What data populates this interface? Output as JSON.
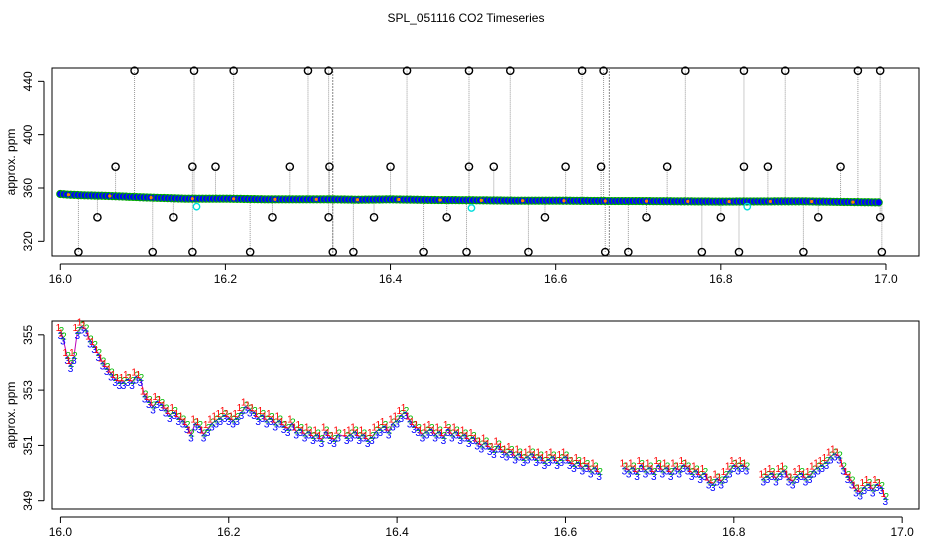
{
  "page": {
    "title": "SPL_051116  CO2 Timeseries"
  },
  "chart_data": [
    {
      "type": "scatter",
      "title": "SPL_051116  CO2 Timeseries",
      "xlabel": "",
      "ylabel": "approx. ppm",
      "xlim": [
        15.99,
        17.04
      ],
      "ylim": [
        309,
        450
      ],
      "x_ticks": [
        16.0,
        16.2,
        16.4,
        16.6,
        16.8,
        17.0
      ],
      "x_tick_labels": [
        "16.0",
        "16.2",
        "16.4",
        "16.6",
        "16.8",
        "17.0"
      ],
      "y_ticks": [
        320,
        360,
        400,
        440
      ],
      "y_tick_labels": [
        "320",
        "360",
        "400",
        "440"
      ],
      "grid": false,
      "segment_breaks": [
        16.33,
        16.665
      ],
      "colors": {
        "main_series": "#0000ff",
        "main_series_edge": "#00aa00",
        "marker_edge": "#ff8000",
        "outlier_marker": "#000000",
        "spike_line": "#999999",
        "highlight": "#00dddd"
      },
      "baseline_points": [
        [
          16.0,
          355.5
        ],
        [
          16.01,
          355.0
        ],
        [
          16.03,
          354.5
        ],
        [
          16.06,
          354.0
        ],
        [
          16.1,
          353.0
        ],
        [
          16.15,
          352.0
        ],
        [
          16.2,
          352.0
        ],
        [
          16.25,
          351.5
        ],
        [
          16.3,
          351.5
        ],
        [
          16.33,
          351.5
        ],
        [
          16.36,
          351.2
        ],
        [
          16.4,
          351.5
        ],
        [
          16.45,
          351.0
        ],
        [
          16.5,
          350.8
        ],
        [
          16.55,
          350.5
        ],
        [
          16.6,
          350.5
        ],
        [
          16.665,
          350.2
        ],
        [
          16.7,
          350.2
        ],
        [
          16.75,
          350.0
        ],
        [
          16.8,
          349.8
        ],
        [
          16.84,
          349.9
        ],
        [
          16.9,
          350.0
        ],
        [
          16.95,
          349.5
        ],
        [
          16.99,
          349.2
        ]
      ],
      "spikes_high": [
        16.09,
        16.162,
        16.21,
        16.3,
        16.325,
        16.42,
        16.495,
        16.545,
        16.632,
        16.658,
        16.757,
        16.828,
        16.878,
        16.966,
        16.993
      ],
      "spikes_mid": [
        16.067,
        16.16,
        16.188,
        16.278,
        16.326,
        16.4,
        16.495,
        16.525,
        16.612,
        16.655,
        16.735,
        16.828,
        16.857,
        16.945
      ],
      "spikes_low": [
        16.022,
        16.112,
        16.16,
        16.23,
        16.33,
        16.355,
        16.44,
        16.492,
        16.567,
        16.66,
        16.688,
        16.777,
        16.822,
        16.9,
        16.995
      ],
      "spikes_lowmid": [
        16.045,
        16.137,
        16.257,
        16.325,
        16.38,
        16.468,
        16.587,
        16.71,
        16.8,
        16.918,
        16.993
      ],
      "high_value": 448,
      "mid_value": 376,
      "low_value": 312,
      "lowmid_value": 338,
      "highlight_points": [
        [
          16.165,
          346
        ],
        [
          16.498,
          345
        ],
        [
          16.832,
          346
        ]
      ]
    },
    {
      "type": "line",
      "xlabel": "",
      "ylabel": "approx. ppm",
      "xlim": [
        15.99,
        17.02
      ],
      "ylim": [
        348.7,
        355.5
      ],
      "x_ticks": [
        16.0,
        16.2,
        16.4,
        16.6,
        16.8,
        17.0
      ],
      "x_tick_labels": [
        "16.0",
        "16.2",
        "16.4",
        "16.6",
        "16.8",
        "17.0"
      ],
      "y_ticks": [
        349,
        351,
        353,
        355
      ],
      "y_tick_labels": [
        "349",
        "351",
        "353",
        "355"
      ],
      "grid": false,
      "series_markers": [
        "1",
        "2",
        "3"
      ],
      "colors": {
        "series_1": "#ff0000",
        "series_2": "#00bb00",
        "series_3": "#0000ff",
        "connector": "#bb00bb"
      },
      "points": [
        [
          16.0,
          355.1
        ],
        [
          16.003,
          354.9
        ],
        [
          16.008,
          354.2
        ],
        [
          16.012,
          353.9
        ],
        [
          16.016,
          354.2
        ],
        [
          16.02,
          355.1
        ],
        [
          16.025,
          355.3
        ],
        [
          16.03,
          355.2
        ],
        [
          16.035,
          354.8
        ],
        [
          16.04,
          354.6
        ],
        [
          16.045,
          354.3
        ],
        [
          16.05,
          354.0
        ],
        [
          16.055,
          353.8
        ],
        [
          16.06,
          353.6
        ],
        [
          16.065,
          353.4
        ],
        [
          16.07,
          353.3
        ],
        [
          16.075,
          353.3
        ],
        [
          16.08,
          353.4
        ],
        [
          16.085,
          353.3
        ],
        [
          16.09,
          353.5
        ],
        [
          16.095,
          353.4
        ],
        [
          16.1,
          352.8
        ],
        [
          16.105,
          352.6
        ],
        [
          16.11,
          352.4
        ],
        [
          16.115,
          352.6
        ],
        [
          16.12,
          352.5
        ],
        [
          16.125,
          352.3
        ],
        [
          16.13,
          352.1
        ],
        [
          16.135,
          352.2
        ],
        [
          16.14,
          352.0
        ],
        [
          16.145,
          351.9
        ],
        [
          16.15,
          351.7
        ],
        [
          16.155,
          351.4
        ],
        [
          16.16,
          351.8
        ],
        [
          16.165,
          351.7
        ],
        [
          16.17,
          351.4
        ],
        [
          16.175,
          351.6
        ],
        [
          16.18,
          351.8
        ],
        [
          16.185,
          351.9
        ],
        [
          16.19,
          352.0
        ],
        [
          16.195,
          352.1
        ],
        [
          16.2,
          352.0
        ],
        [
          16.205,
          351.9
        ],
        [
          16.21,
          352.0
        ],
        [
          16.215,
          352.2
        ],
        [
          16.22,
          352.4
        ],
        [
          16.225,
          352.3
        ],
        [
          16.23,
          352.2
        ],
        [
          16.235,
          352.0
        ],
        [
          16.24,
          352.1
        ],
        [
          16.245,
          351.9
        ],
        [
          16.25,
          352.0
        ],
        [
          16.255,
          351.8
        ],
        [
          16.26,
          351.9
        ],
        [
          16.265,
          351.7
        ],
        [
          16.27,
          351.6
        ],
        [
          16.275,
          351.8
        ],
        [
          16.28,
          351.5
        ],
        [
          16.285,
          351.6
        ],
        [
          16.29,
          351.4
        ],
        [
          16.295,
          351.5
        ],
        [
          16.3,
          351.3
        ],
        [
          16.305,
          351.4
        ],
        [
          16.31,
          351.2
        ],
        [
          16.315,
          351.5
        ],
        [
          16.32,
          351.3
        ],
        [
          16.325,
          351.2
        ],
        [
          16.33,
          351.4
        ],
        [
          16.34,
          351.3
        ],
        [
          16.345,
          351.4
        ],
        [
          16.35,
          351.5
        ],
        [
          16.355,
          351.3
        ],
        [
          16.36,
          351.4
        ],
        [
          16.365,
          351.2
        ],
        [
          16.37,
          351.3
        ],
        [
          16.375,
          351.5
        ],
        [
          16.38,
          351.6
        ],
        [
          16.385,
          351.7
        ],
        [
          16.39,
          351.5
        ],
        [
          16.395,
          351.8
        ],
        [
          16.4,
          351.9
        ],
        [
          16.405,
          352.1
        ],
        [
          16.41,
          352.2
        ],
        [
          16.415,
          351.9
        ],
        [
          16.42,
          351.7
        ],
        [
          16.425,
          351.6
        ],
        [
          16.43,
          351.4
        ],
        [
          16.435,
          351.5
        ],
        [
          16.44,
          351.6
        ],
        [
          16.445,
          351.4
        ],
        [
          16.45,
          351.5
        ],
        [
          16.455,
          351.3
        ],
        [
          16.46,
          351.6
        ],
        [
          16.465,
          351.4
        ],
        [
          16.47,
          351.5
        ],
        [
          16.475,
          351.3
        ],
        [
          16.48,
          351.4
        ],
        [
          16.485,
          351.2
        ],
        [
          16.49,
          351.3
        ],
        [
          16.495,
          351.1
        ],
        [
          16.5,
          351.0
        ],
        [
          16.505,
          351.1
        ],
        [
          16.51,
          350.9
        ],
        [
          16.515,
          350.8
        ],
        [
          16.52,
          351.0
        ],
        [
          16.525,
          350.8
        ],
        [
          16.53,
          350.7
        ],
        [
          16.535,
          350.8
        ],
        [
          16.54,
          350.6
        ],
        [
          16.545,
          350.7
        ],
        [
          16.55,
          350.5
        ],
        [
          16.555,
          350.6
        ],
        [
          16.56,
          350.7
        ],
        [
          16.565,
          350.5
        ],
        [
          16.57,
          350.6
        ],
        [
          16.575,
          350.4
        ],
        [
          16.58,
          350.5
        ],
        [
          16.585,
          350.6
        ],
        [
          16.59,
          350.4
        ],
        [
          16.595,
          350.5
        ],
        [
          16.6,
          350.6
        ],
        [
          16.605,
          350.4
        ],
        [
          16.61,
          350.3
        ],
        [
          16.615,
          350.4
        ],
        [
          16.62,
          350.2
        ],
        [
          16.625,
          350.3
        ],
        [
          16.63,
          350.1
        ],
        [
          16.635,
          350.2
        ],
        [
          16.64,
          350.0
        ],
        [
          16.67,
          350.2
        ],
        [
          16.675,
          350.1
        ],
        [
          16.68,
          350.2
        ],
        [
          16.685,
          350.0
        ],
        [
          16.69,
          350.3
        ],
        [
          16.695,
          350.1
        ],
        [
          16.7,
          350.2
        ],
        [
          16.705,
          350.0
        ],
        [
          16.71,
          350.3
        ],
        [
          16.715,
          350.1
        ],
        [
          16.72,
          350.2
        ],
        [
          16.725,
          350.0
        ],
        [
          16.73,
          350.2
        ],
        [
          16.735,
          350.1
        ],
        [
          16.74,
          350.3
        ],
        [
          16.745,
          350.2
        ],
        [
          16.75,
          350.0
        ],
        [
          16.755,
          350.1
        ],
        [
          16.76,
          349.9
        ],
        [
          16.765,
          350.0
        ],
        [
          16.77,
          349.7
        ],
        [
          16.775,
          349.6
        ],
        [
          16.78,
          349.8
        ],
        [
          16.785,
          349.7
        ],
        [
          16.79,
          349.9
        ],
        [
          16.795,
          350.1
        ],
        [
          16.8,
          350.3
        ],
        [
          16.805,
          350.2
        ],
        [
          16.81,
          350.3
        ],
        [
          16.815,
          350.2
        ],
        [
          16.835,
          349.8
        ],
        [
          16.84,
          349.9
        ],
        [
          16.845,
          350.0
        ],
        [
          16.85,
          349.8
        ],
        [
          16.855,
          350.0
        ],
        [
          16.86,
          350.1
        ],
        [
          16.865,
          349.8
        ],
        [
          16.87,
          349.7
        ],
        [
          16.875,
          349.9
        ],
        [
          16.88,
          350.0
        ],
        [
          16.885,
          349.8
        ],
        [
          16.89,
          349.9
        ],
        [
          16.895,
          350.1
        ],
        [
          16.9,
          350.2
        ],
        [
          16.905,
          350.3
        ],
        [
          16.91,
          350.4
        ],
        [
          16.915,
          350.6
        ],
        [
          16.92,
          350.7
        ],
        [
          16.925,
          350.6
        ],
        [
          16.93,
          350.2
        ],
        [
          16.935,
          349.9
        ],
        [
          16.94,
          349.7
        ],
        [
          16.945,
          349.4
        ],
        [
          16.95,
          349.3
        ],
        [
          16.955,
          349.5
        ],
        [
          16.96,
          349.6
        ],
        [
          16.965,
          349.4
        ],
        [
          16.97,
          349.6
        ],
        [
          16.975,
          349.5
        ],
        [
          16.98,
          349.1
        ]
      ]
    }
  ]
}
